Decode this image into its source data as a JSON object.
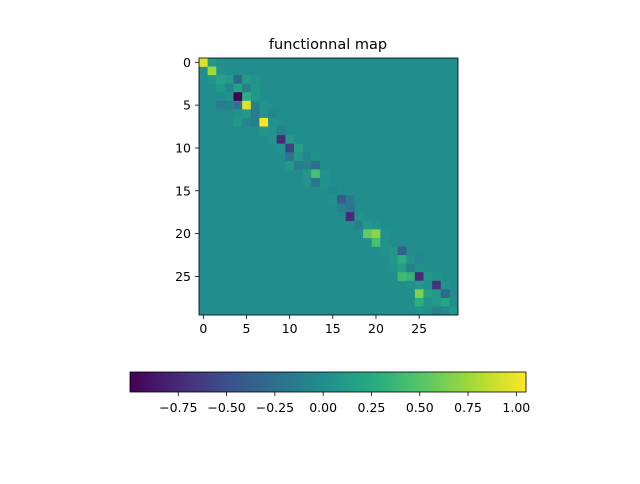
{
  "chart_data": {
    "type": "heatmap",
    "title": "functionnal map",
    "rows": 30,
    "cols": 30,
    "background_value": 0.0,
    "cells": [
      [
        0,
        0,
        0.95
      ],
      [
        0,
        1,
        0.1
      ],
      [
        1,
        1,
        0.75
      ],
      [
        1,
        2,
        0.05
      ],
      [
        2,
        1,
        0.08
      ],
      [
        2,
        2,
        0.18
      ],
      [
        2,
        3,
        0.12
      ],
      [
        2,
        4,
        -0.3
      ],
      [
        2,
        5,
        0.12
      ],
      [
        2,
        6,
        0.05
      ],
      [
        3,
        2,
        0.1
      ],
      [
        3,
        3,
        -0.05
      ],
      [
        3,
        4,
        0.2
      ],
      [
        3,
        5,
        -0.1
      ],
      [
        3,
        6,
        0.08
      ],
      [
        4,
        3,
        0.05
      ],
      [
        4,
        4,
        -1.0
      ],
      [
        4,
        5,
        0.3
      ],
      [
        4,
        6,
        0.1
      ],
      [
        5,
        2,
        -0.15
      ],
      [
        5,
        3,
        -0.1
      ],
      [
        5,
        4,
        -0.2
      ],
      [
        5,
        5,
        0.95
      ],
      [
        5,
        6,
        -0.1
      ],
      [
        5,
        7,
        0.05
      ],
      [
        6,
        4,
        0.05
      ],
      [
        6,
        5,
        0.1
      ],
      [
        6,
        6,
        -0.15
      ],
      [
        6,
        7,
        0.05
      ],
      [
        6,
        8,
        -0.05
      ],
      [
        7,
        4,
        0.1
      ],
      [
        7,
        5,
        -0.05
      ],
      [
        7,
        6,
        -0.1
      ],
      [
        7,
        7,
        1.05
      ],
      [
        7,
        8,
        0.05
      ],
      [
        8,
        7,
        0.1
      ],
      [
        8,
        8,
        0.05
      ],
      [
        8,
        9,
        -0.1
      ],
      [
        9,
        8,
        0.05
      ],
      [
        9,
        9,
        -0.75
      ],
      [
        9,
        10,
        0.1
      ],
      [
        10,
        9,
        0.05
      ],
      [
        10,
        10,
        -0.6
      ],
      [
        10,
        11,
        0.15
      ],
      [
        11,
        10,
        -0.2
      ],
      [
        11,
        11,
        0.1
      ],
      [
        11,
        12,
        -0.05
      ],
      [
        11,
        13,
        0.05
      ],
      [
        12,
        10,
        0.1
      ],
      [
        12,
        11,
        -0.15
      ],
      [
        12,
        12,
        -0.1
      ],
      [
        12,
        13,
        -0.25
      ],
      [
        13,
        12,
        0.1
      ],
      [
        13,
        13,
        0.45
      ],
      [
        13,
        14,
        0.05
      ],
      [
        14,
        12,
        0.05
      ],
      [
        14,
        13,
        -0.2
      ],
      [
        14,
        14,
        0.05
      ],
      [
        15,
        15,
        -0.05
      ],
      [
        16,
        15,
        0.05
      ],
      [
        16,
        16,
        -0.4
      ],
      [
        16,
        17,
        -0.15
      ],
      [
        17,
        16,
        -0.1
      ],
      [
        17,
        17,
        -0.2
      ],
      [
        18,
        17,
        -0.75
      ],
      [
        18,
        18,
        0.05
      ],
      [
        19,
        18,
        -0.1
      ],
      [
        19,
        19,
        0.1
      ],
      [
        19,
        20,
        0.05
      ],
      [
        20,
        19,
        0.55
      ],
      [
        20,
        20,
        0.7
      ],
      [
        20,
        21,
        0.05
      ],
      [
        21,
        20,
        0.45
      ],
      [
        21,
        21,
        0.05
      ],
      [
        22,
        21,
        0.05
      ],
      [
        22,
        22,
        0.1
      ],
      [
        22,
        23,
        -0.35
      ],
      [
        23,
        22,
        0.1
      ],
      [
        23,
        23,
        0.3
      ],
      [
        23,
        24,
        0.05
      ],
      [
        23,
        25,
        -0.05
      ],
      [
        24,
        22,
        0.05
      ],
      [
        24,
        23,
        0.15
      ],
      [
        24,
        24,
        -0.1
      ],
      [
        24,
        25,
        0.05
      ],
      [
        25,
        23,
        0.4
      ],
      [
        25,
        24,
        0.35
      ],
      [
        25,
        25,
        -0.75
      ],
      [
        25,
        26,
        0.1
      ],
      [
        25,
        27,
        0.05
      ],
      [
        26,
        24,
        0.05
      ],
      [
        26,
        25,
        0.1
      ],
      [
        26,
        26,
        0.05
      ],
      [
        26,
        27,
        -0.7
      ],
      [
        26,
        28,
        0.05
      ],
      [
        27,
        25,
        0.65
      ],
      [
        27,
        26,
        0.15
      ],
      [
        27,
        27,
        0.1
      ],
      [
        27,
        28,
        -0.3
      ],
      [
        28,
        25,
        0.3
      ],
      [
        28,
        26,
        0.05
      ],
      [
        28,
        27,
        0.1
      ],
      [
        28,
        28,
        0.2
      ],
      [
        29,
        25,
        0.05
      ],
      [
        29,
        27,
        -0.1
      ],
      [
        29,
        28,
        -0.05
      ],
      [
        29,
        29,
        0.1
      ]
    ],
    "x_ticks": [
      0,
      5,
      10,
      15,
      20,
      25
    ],
    "y_ticks": [
      0,
      5,
      10,
      15,
      20,
      25
    ],
    "colorbar": {
      "orientation": "horizontal",
      "vmin": -1.0,
      "vmax": 1.05,
      "ticks": [
        -0.75,
        -0.5,
        -0.25,
        0.0,
        0.25,
        0.5,
        0.75,
        1.0
      ],
      "tick_labels": [
        "−0.75",
        "−0.50",
        "−0.25",
        "0.00",
        "0.25",
        "0.50",
        "0.75",
        "1.00"
      ]
    },
    "colormap": "viridis"
  }
}
